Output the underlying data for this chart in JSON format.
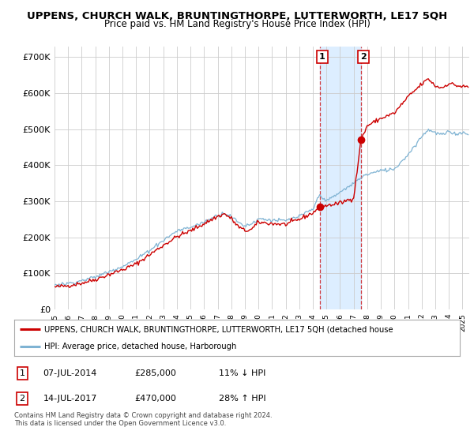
{
  "title": "UPPENS, CHURCH WALK, BRUNTINGTHORPE, LUTTERWORTH, LE17 5QH",
  "subtitle": "Price paid vs. HM Land Registry's House Price Index (HPI)",
  "title_fontsize": 9.5,
  "subtitle_fontsize": 8.5,
  "ylabel_ticks": [
    "£0",
    "£100K",
    "£200K",
    "£300K",
    "£400K",
    "£500K",
    "£600K",
    "£700K"
  ],
  "ytick_vals": [
    0,
    100000,
    200000,
    300000,
    400000,
    500000,
    600000,
    700000
  ],
  "ylim": [
    0,
    730000
  ],
  "xlim_start": 1995.0,
  "xlim_end": 2025.5,
  "sale1_x": 2014.52,
  "sale1_y": 285000,
  "sale1_label": "1",
  "sale2_x": 2017.54,
  "sale2_y": 470000,
  "sale2_label": "2",
  "sale_color": "#cc0000",
  "hpi_color": "#7fb3d3",
  "shade_color": "#ddeeff",
  "grid_color": "#cccccc",
  "background_color": "#ffffff",
  "legend_line1": "UPPENS, CHURCH WALK, BRUNTINGTHORPE, LUTTERWORTH, LE17 5QH (detached house",
  "legend_line2": "HPI: Average price, detached house, Harborough",
  "table_row1": [
    "1",
    "07-JUL-2014",
    "£285,000",
    "11% ↓ HPI"
  ],
  "table_row2": [
    "2",
    "14-JUL-2017",
    "£470,000",
    "28% ↑ HPI"
  ],
  "footnote": "Contains HM Land Registry data © Crown copyright and database right 2024.\nThis data is licensed under the Open Government Licence v3.0."
}
